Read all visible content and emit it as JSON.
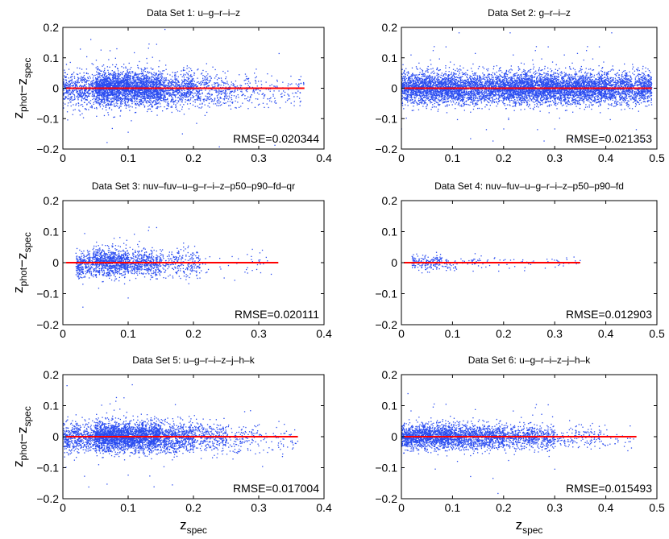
{
  "chart_data": [
    {
      "type": "scatter",
      "title": "Data Set 1: u–g–r–i–z",
      "xlim": [
        0,
        0.4
      ],
      "ylim": [
        -0.2,
        0.2
      ],
      "xticks": [
        "0",
        "0.1",
        "0.2",
        "0.3",
        "0.4"
      ],
      "yticks": [
        "0.2",
        "0.1",
        "0",
        "−0.1",
        "−0.2"
      ],
      "xlabel": "",
      "ylabel": "z_phot−z_spec",
      "rmse": "RMSE=0.020344",
      "line_x": [
        0.005,
        0.37
      ],
      "density": [
        [
          0.0,
          0.05,
          10
        ],
        [
          0.05,
          0.1,
          28
        ],
        [
          0.1,
          0.15,
          24
        ],
        [
          0.15,
          0.2,
          12
        ],
        [
          0.2,
          0.25,
          6
        ],
        [
          0.25,
          0.3,
          3
        ],
        [
          0.3,
          0.37,
          1.5
        ]
      ],
      "spread": 0.028,
      "bias_slope": -0.12
    },
    {
      "type": "scatter",
      "title": "Data Set 2: g–r–i–z",
      "xlim": [
        0,
        0.5
      ],
      "ylim": [
        -0.2,
        0.2
      ],
      "xticks": [
        "0",
        "0.1",
        "0.2",
        "0.3",
        "0.4",
        "0.5"
      ],
      "yticks": [
        "0.2",
        "0.1",
        "0",
        "−0.1",
        "−0.2"
      ],
      "xlabel": "",
      "ylabel": "",
      "rmse": "RMSE=0.021353",
      "line_x": [
        0.005,
        0.49
      ],
      "density": [
        [
          0.0,
          0.1,
          16
        ],
        [
          0.1,
          0.2,
          14
        ],
        [
          0.2,
          0.3,
          18
        ],
        [
          0.3,
          0.4,
          16
        ],
        [
          0.4,
          0.49,
          12
        ]
      ],
      "spread": 0.026,
      "bias_slope": 0.0
    },
    {
      "type": "scatter",
      "title": "Data Set 3: nuv–fuv–u–g–r–i–z–p50–p90–fd–qr",
      "xlim": [
        0,
        0.4
      ],
      "ylim": [
        -0.2,
        0.2
      ],
      "xticks": [
        "0",
        "0.1",
        "0.2",
        "0.3",
        "0.4"
      ],
      "yticks": [
        "0.2",
        "0.1",
        "0",
        "−0.1",
        "−0.2"
      ],
      "xlabel": "",
      "ylabel": "z_phot−z_spec",
      "rmse": "RMSE=0.020111",
      "line_x": [
        0.005,
        0.33
      ],
      "density": [
        [
          0.02,
          0.05,
          10
        ],
        [
          0.05,
          0.1,
          16
        ],
        [
          0.1,
          0.15,
          9
        ],
        [
          0.15,
          0.21,
          4
        ],
        [
          0.21,
          0.32,
          0.4
        ]
      ],
      "spread": 0.022,
      "bias_slope": -0.1
    },
    {
      "type": "scatter",
      "title": "Data Set 4: nuv–fuv–u–g–r–i–z–p50–p90–fd",
      "xlim": [
        0,
        0.5
      ],
      "ylim": [
        -0.2,
        0.2
      ],
      "xticks": [
        "0",
        "0.1",
        "0.2",
        "0.3",
        "0.4",
        "0.5"
      ],
      "yticks": [
        "0.2",
        "0.1",
        "0",
        "−0.1",
        "−0.2"
      ],
      "xlabel": "",
      "ylabel": "",
      "rmse": "RMSE=0.012903",
      "line_x": [
        0.005,
        0.35
      ],
      "density": [
        [
          0.02,
          0.08,
          3
        ],
        [
          0.08,
          0.15,
          0.8
        ],
        [
          0.15,
          0.35,
          0.3
        ]
      ],
      "spread": 0.012,
      "bias_slope": 0.0
    },
    {
      "type": "scatter",
      "title": "Data Set 5: u–g–r–i–z–j–h–k",
      "xlim": [
        0,
        0.4
      ],
      "ylim": [
        -0.2,
        0.2
      ],
      "xticks": [
        "0",
        "0.1",
        "0.2",
        "0.3",
        "0.4"
      ],
      "yticks": [
        "0.2",
        "0.1",
        "0",
        "−0.1",
        "−0.2"
      ],
      "xlabel": "z_spec",
      "ylabel": "z_phot−z_spec",
      "rmse": "RMSE=0.017004",
      "line_x": [
        0.005,
        0.36
      ],
      "density": [
        [
          0.0,
          0.05,
          10
        ],
        [
          0.05,
          0.1,
          26
        ],
        [
          0.1,
          0.15,
          22
        ],
        [
          0.15,
          0.2,
          12
        ],
        [
          0.2,
          0.25,
          6
        ],
        [
          0.25,
          0.3,
          2.5
        ],
        [
          0.3,
          0.36,
          1
        ]
      ],
      "spread": 0.024,
      "bias_slope": -0.08
    },
    {
      "type": "scatter",
      "title": "Data Set 6: u–g–r–i–z–j–h–k",
      "xlim": [
        0,
        0.5
      ],
      "ylim": [
        -0.2,
        0.2
      ],
      "xticks": [
        "0",
        "0.1",
        "0.2",
        "0.3",
        "0.4",
        "0.5"
      ],
      "yticks": [
        "0.2",
        "0.1",
        "0",
        "−0.1",
        "−0.2"
      ],
      "xlabel": "z_spec",
      "ylabel": "",
      "rmse": "RMSE=0.015493",
      "line_x": [
        0.005,
        0.46
      ],
      "density": [
        [
          0.0,
          0.1,
          14
        ],
        [
          0.1,
          0.2,
          10
        ],
        [
          0.2,
          0.3,
          6
        ],
        [
          0.3,
          0.4,
          1.5
        ],
        [
          0.4,
          0.46,
          0.4
        ]
      ],
      "spread": 0.02,
      "bias_slope": -0.03
    }
  ],
  "colors": {
    "points": "#2a4cf0",
    "line": "#ff0000",
    "axes": "#000000"
  }
}
